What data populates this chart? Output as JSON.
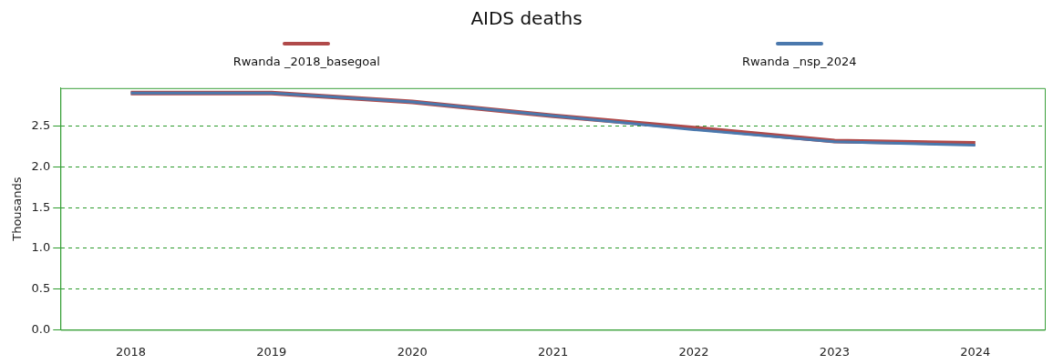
{
  "chart_data": {
    "type": "line",
    "title": "AIDS deaths",
    "ylabel": "Thousands",
    "categories": [
      "2018",
      "2019",
      "2020",
      "2021",
      "2022",
      "2023",
      "2024"
    ],
    "series": [
      {
        "name": "Rwanda _2018_basegoal",
        "color": "#b04a4a",
        "values": [
          2.91,
          2.91,
          2.8,
          2.63,
          2.48,
          2.32,
          2.29
        ]
      },
      {
        "name": "Rwanda _nsp_2024",
        "color": "#4a78ad",
        "values": [
          2.91,
          2.91,
          2.8,
          2.63,
          2.46,
          2.31,
          2.27
        ]
      }
    ],
    "ylim": [
      0,
      2.97
    ],
    "yticks": [
      {
        "value": 0,
        "label": "0.0"
      },
      {
        "value": 0.5,
        "label": "0.5"
      },
      {
        "value": 1,
        "label": "1.0"
      },
      {
        "value": 1.5,
        "label": "1.5"
      },
      {
        "value": 2,
        "label": "2.0"
      },
      {
        "value": 2.5,
        "label": "2.5"
      }
    ],
    "grid": "y",
    "legend": "top",
    "marker": "none",
    "line_style": "solid"
  }
}
